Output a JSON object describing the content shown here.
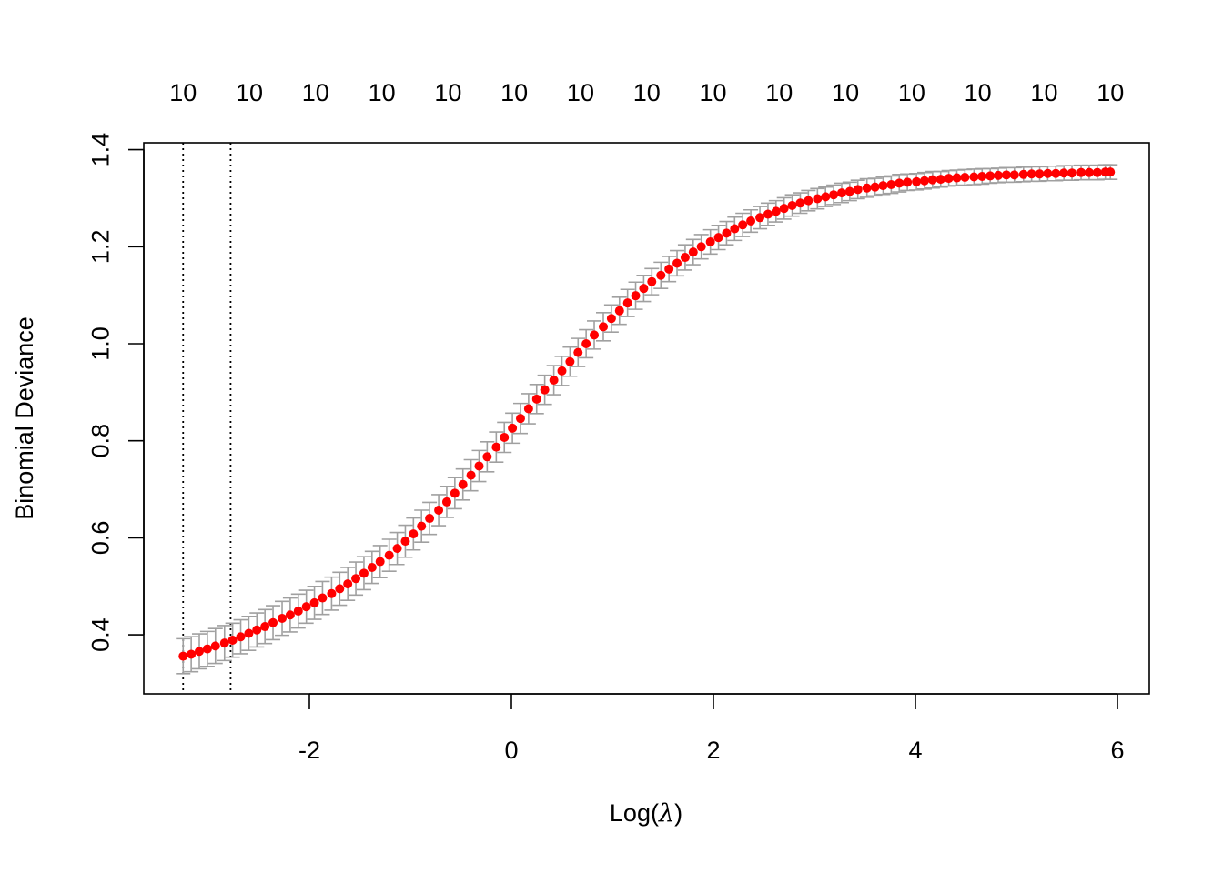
{
  "chart_data": {
    "type": "scatter",
    "xlabel": "Log(",
    "xlabel_symbol": "λ",
    "xlabel_close": ")",
    "ylabel": "Binomial Deviance",
    "xlim": [
      -3.3,
      6.0
    ],
    "ylim": [
      0.3,
      1.42
    ],
    "x_ticks": [
      "-2",
      "0",
      "2",
      "4",
      "6"
    ],
    "y_ticks": [
      "0.4",
      "0.6",
      "0.8",
      "1.0",
      "1.2",
      "1.4"
    ],
    "top_axis_labels": [
      "10",
      "10",
      "10",
      "10",
      "10",
      "10",
      "10",
      "10",
      "10",
      "10",
      "10",
      "10",
      "10",
      "10",
      "10"
    ],
    "lambda_min_log": -3.25,
    "lambda_1se_log": -2.78,
    "point_color": "#ff0000",
    "errorbar_color": "#a0a0a0",
    "x": [
      -3.25,
      -3.17,
      -3.09,
      -3.01,
      -2.93,
      -2.84,
      -2.76,
      -2.68,
      -2.6,
      -2.52,
      -2.44,
      -2.36,
      -2.27,
      -2.19,
      -2.11,
      -2.03,
      -1.95,
      -1.87,
      -1.78,
      -1.7,
      -1.62,
      -1.54,
      -1.46,
      -1.38,
      -1.3,
      -1.21,
      -1.13,
      -1.05,
      -0.97,
      -0.89,
      -0.81,
      -0.72,
      -0.64,
      -0.56,
      -0.48,
      -0.4,
      -0.32,
      -0.24,
      -0.15,
      -0.07,
      0.01,
      0.09,
      0.17,
      0.25,
      0.33,
      0.42,
      0.5,
      0.58,
      0.66,
      0.74,
      0.82,
      0.91,
      0.99,
      1.07,
      1.15,
      1.23,
      1.31,
      1.39,
      1.48,
      1.56,
      1.64,
      1.72,
      1.8,
      1.88,
      1.97,
      2.05,
      2.13,
      2.21,
      2.29,
      2.37,
      2.46,
      2.54,
      2.62,
      2.7,
      2.78,
      2.86,
      2.94,
      3.03,
      3.11,
      3.19,
      3.27,
      3.35,
      3.43,
      3.52,
      3.6,
      3.68,
      3.76,
      3.84,
      3.92,
      4.01,
      4.09,
      4.17,
      4.25,
      4.33,
      4.41,
      4.49,
      4.58,
      4.66,
      4.74,
      4.82,
      4.9,
      4.98,
      5.07,
      5.15,
      5.23,
      5.31,
      5.39,
      5.47,
      5.55,
      5.64,
      5.72,
      5.8,
      5.88,
      5.93
    ],
    "y": [
      0.356,
      0.36,
      0.366,
      0.371,
      0.377,
      0.383,
      0.389,
      0.396,
      0.403,
      0.41,
      0.417,
      0.425,
      0.434,
      0.441,
      0.449,
      0.458,
      0.466,
      0.476,
      0.485,
      0.495,
      0.505,
      0.516,
      0.527,
      0.539,
      0.551,
      0.564,
      0.578,
      0.593,
      0.608,
      0.624,
      0.64,
      0.657,
      0.674,
      0.692,
      0.71,
      0.729,
      0.748,
      0.767,
      0.787,
      0.807,
      0.826,
      0.846,
      0.866,
      0.886,
      0.905,
      0.925,
      0.944,
      0.963,
      0.982,
      1.0,
      1.018,
      1.035,
      1.052,
      1.068,
      1.084,
      1.099,
      1.114,
      1.128,
      1.141,
      1.154,
      1.166,
      1.178,
      1.189,
      1.2,
      1.21,
      1.219,
      1.228,
      1.237,
      1.245,
      1.253,
      1.26,
      1.267,
      1.273,
      1.279,
      1.285,
      1.29,
      1.295,
      1.299,
      1.303,
      1.307,
      1.311,
      1.314,
      1.318,
      1.321,
      1.323,
      1.326,
      1.328,
      1.331,
      1.333,
      1.334,
      1.336,
      1.338,
      1.339,
      1.341,
      1.342,
      1.343,
      1.344,
      1.345,
      1.346,
      1.347,
      1.348,
      1.348,
      1.349,
      1.35,
      1.35,
      1.351,
      1.351,
      1.352,
      1.352,
      1.353,
      1.353,
      1.353,
      1.354,
      1.354
    ],
    "se": [
      0.036,
      0.036,
      0.036,
      0.036,
      0.036,
      0.036,
      0.035,
      0.035,
      0.035,
      0.035,
      0.035,
      0.035,
      0.035,
      0.035,
      0.035,
      0.034,
      0.034,
      0.034,
      0.034,
      0.034,
      0.034,
      0.034,
      0.034,
      0.033,
      0.033,
      0.033,
      0.033,
      0.033,
      0.033,
      0.033,
      0.033,
      0.032,
      0.032,
      0.032,
      0.032,
      0.032,
      0.032,
      0.031,
      0.031,
      0.031,
      0.031,
      0.031,
      0.031,
      0.03,
      0.03,
      0.03,
      0.03,
      0.03,
      0.029,
      0.029,
      0.029,
      0.029,
      0.028,
      0.028,
      0.028,
      0.028,
      0.027,
      0.027,
      0.027,
      0.026,
      0.026,
      0.026,
      0.026,
      0.025,
      0.025,
      0.025,
      0.024,
      0.024,
      0.024,
      0.023,
      0.023,
      0.023,
      0.022,
      0.022,
      0.022,
      0.021,
      0.021,
      0.021,
      0.02,
      0.02,
      0.02,
      0.019,
      0.019,
      0.019,
      0.018,
      0.018,
      0.018,
      0.018,
      0.017,
      0.017,
      0.017,
      0.017,
      0.016,
      0.016,
      0.016,
      0.016,
      0.016,
      0.016,
      0.015,
      0.015,
      0.015,
      0.015,
      0.015,
      0.015,
      0.015,
      0.015,
      0.015,
      0.015,
      0.015,
      0.015,
      0.015,
      0.015,
      0.015,
      0.015
    ]
  }
}
